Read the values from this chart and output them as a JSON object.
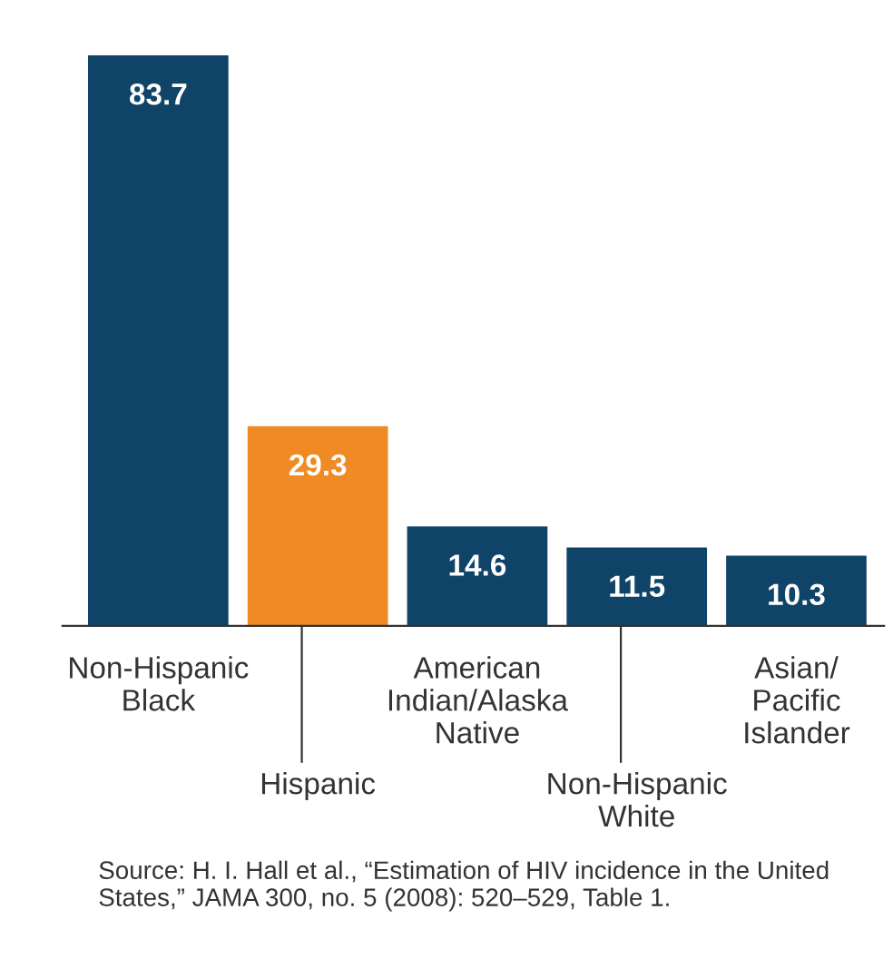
{
  "chart_data": {
    "type": "bar",
    "categories": [
      "Non-Hispanic\nBlack",
      "Hispanic",
      "American\nIndian/Alaska\nNative",
      "Non-Hispanic\nWhite",
      "Asian/\nPacific\nIslander"
    ],
    "values": [
      83.7,
      29.3,
      14.6,
      11.5,
      10.3
    ],
    "colors": [
      "#0f4468",
      "#f08a24",
      "#0f4468",
      "#0f4468",
      "#0f4468"
    ],
    "data_labels": true,
    "annotations": [
      "Source: H. I. Hall et al., “Estimation of HIV incidence in the United States,” JAMA 300, no. 5 (2008): 520–529, Table 1."
    ]
  }
}
